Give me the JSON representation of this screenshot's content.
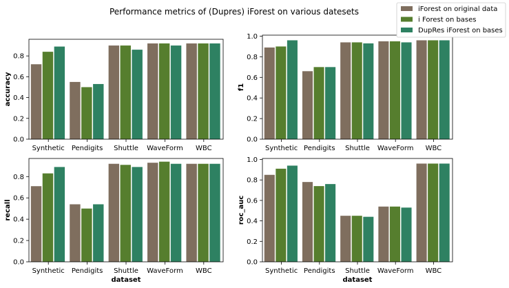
{
  "title": "Performance metrics of (Dupres) iForest on various datesets",
  "legend": {
    "placement": "top-right",
    "entries": [
      {
        "label": "iForest on original data",
        "color": "#7f6e5e"
      },
      {
        "label": "i Forest on bases",
        "color": "#567e2e"
      },
      {
        "label": "DupRes iForest on bases",
        "color": "#2e8162"
      }
    ]
  },
  "chart_data": [
    {
      "type": "bar",
      "ylabel": "accuracy",
      "xlabel": "",
      "categories": [
        "Synthetic",
        "Pendigits",
        "Shuttle",
        "WaveForm",
        "WBC"
      ],
      "ylim": [
        0,
        0.96
      ],
      "yticks": [
        "0.0",
        "0.2",
        "0.4",
        "0.6",
        "0.8"
      ],
      "series": [
        {
          "name": "iForest on original data",
          "values": [
            0.72,
            0.55,
            0.9,
            0.92,
            0.92
          ]
        },
        {
          "name": "i Forest on bases",
          "values": [
            0.84,
            0.5,
            0.9,
            0.92,
            0.92
          ]
        },
        {
          "name": "DupRes iForest on bases",
          "values": [
            0.89,
            0.53,
            0.86,
            0.9,
            0.92
          ]
        }
      ]
    },
    {
      "type": "bar",
      "ylabel": "f1",
      "xlabel": "",
      "categories": [
        "Synthetic",
        "Pendigits",
        "Shuttle",
        "WaveForm",
        "WBC"
      ],
      "ylim": [
        0,
        1.01
      ],
      "yticks": [
        "0.0",
        "0.2",
        "0.4",
        "0.6",
        "0.8",
        "1.0"
      ],
      "series": [
        {
          "name": "iForest on original data",
          "values": [
            0.89,
            0.66,
            0.94,
            0.95,
            0.96
          ]
        },
        {
          "name": "i Forest on bases",
          "values": [
            0.9,
            0.7,
            0.94,
            0.95,
            0.96
          ]
        },
        {
          "name": "DupRes iForest on bases",
          "values": [
            0.96,
            0.7,
            0.93,
            0.94,
            0.96
          ]
        }
      ]
    },
    {
      "type": "bar",
      "ylabel": "recall",
      "xlabel": "dataset",
      "categories": [
        "Synthetic",
        "Pendigits",
        "Shuttle",
        "WaveForm",
        "WBC"
      ],
      "ylim": [
        0,
        0.97
      ],
      "yticks": [
        "0.0",
        "0.2",
        "0.4",
        "0.6",
        "0.8"
      ],
      "series": [
        {
          "name": "iForest on original data",
          "values": [
            0.71,
            0.54,
            0.92,
            0.93,
            0.92
          ]
        },
        {
          "name": "i Forest on bases",
          "values": [
            0.83,
            0.5,
            0.91,
            0.94,
            0.92
          ]
        },
        {
          "name": "DupRes iForest on bases",
          "values": [
            0.89,
            0.54,
            0.89,
            0.92,
            0.92
          ]
        }
      ]
    },
    {
      "type": "bar",
      "ylabel": "roc_auc",
      "xlabel": "dataset",
      "categories": [
        "Synthetic",
        "Pendigits",
        "Shuttle",
        "WaveForm",
        "WBC"
      ],
      "ylim": [
        0,
        1.01
      ],
      "yticks": [
        "0.0",
        "0.2",
        "0.4",
        "0.6",
        "0.8",
        "1.0"
      ],
      "series": [
        {
          "name": "iForest on original data",
          "values": [
            0.85,
            0.78,
            0.45,
            0.54,
            0.96
          ]
        },
        {
          "name": "i Forest on bases",
          "values": [
            0.91,
            0.74,
            0.45,
            0.54,
            0.96
          ]
        },
        {
          "name": "DupRes iForest on bases",
          "values": [
            0.94,
            0.76,
            0.44,
            0.53,
            0.96
          ]
        }
      ]
    }
  ]
}
